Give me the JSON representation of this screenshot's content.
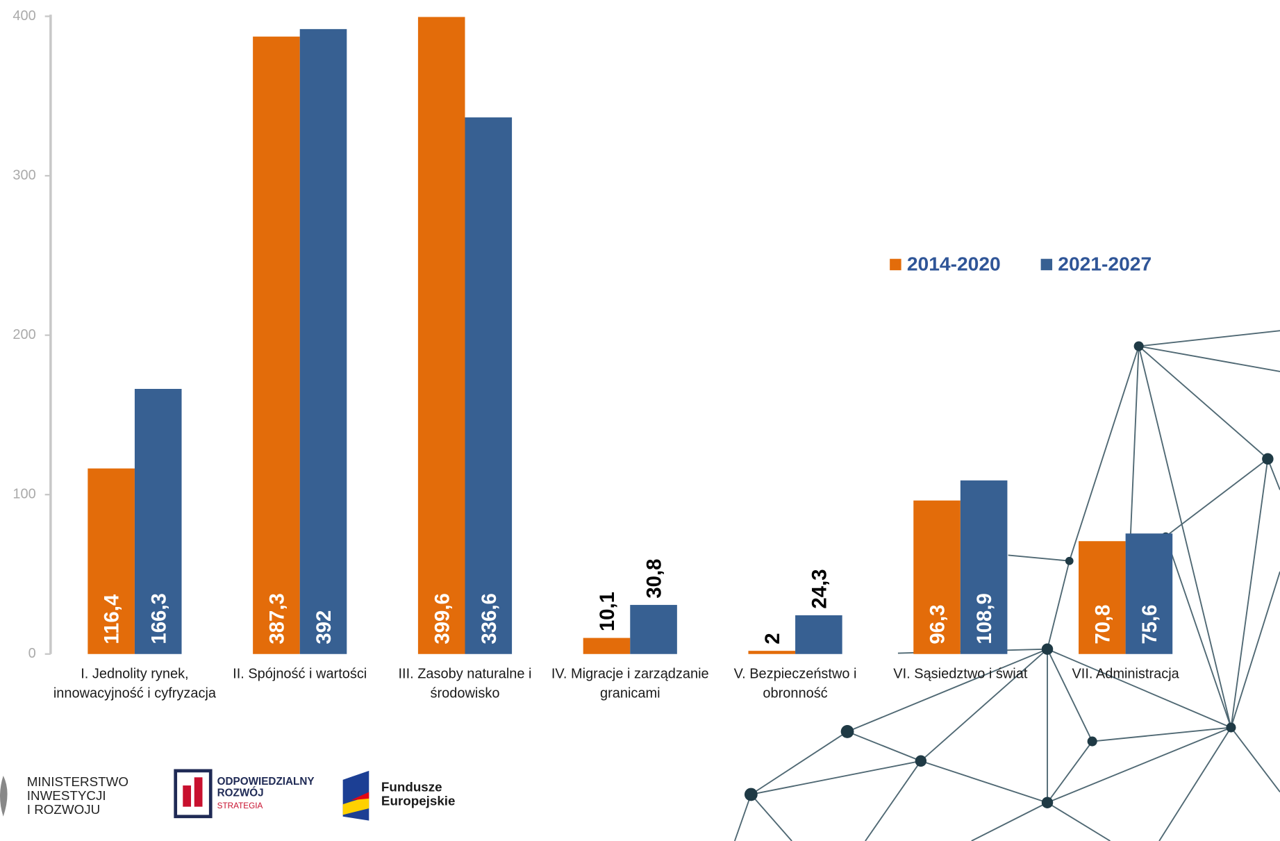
{
  "chart_data": {
    "type": "bar",
    "categories": [
      [
        "I. Jednolity rynek,",
        "innowacyjność i cyfryzacja"
      ],
      [
        "II. Spójność i wartości"
      ],
      [
        "III. Zasoby naturalne i",
        "środowisko"
      ],
      [
        "IV. Migracje i zarządzanie",
        "granicami"
      ],
      [
        "V.  Bezpieczeństwo i",
        "obronność"
      ],
      [
        "VI. Sąsiedztwo i  świat"
      ],
      [
        "VII. Administracja"
      ]
    ],
    "series": [
      {
        "name": "2014-2020",
        "color": "#e36c0a",
        "values": [
          116.4,
          387.3,
          399.6,
          10.1,
          2,
          96.3,
          70.8
        ],
        "value_labels": [
          "116,4",
          "387,3",
          "399,6",
          "10,1",
          "2",
          "96,3",
          "70,8"
        ]
      },
      {
        "name": "2021-2027",
        "color": "#376092",
        "values": [
          166.3,
          392,
          336.6,
          30.8,
          24.3,
          108.9,
          75.6
        ],
        "value_labels": [
          "166,3",
          "392",
          "336,6",
          "30,8",
          "24,3",
          "108,9",
          "75,6"
        ]
      }
    ],
    "ylim": [
      0,
      400
    ],
    "yticks": [
      0,
      100,
      200,
      300,
      400
    ],
    "legend": "upper right"
  },
  "logos": {
    "ministry": [
      "MINISTERSTWO",
      "INWESTYCJI",
      "I ROZWOJU"
    ],
    "strategy": [
      "ODPOWIEDZIALNY",
      "ROZWÓJ",
      "STRATEGIA"
    ],
    "funds": [
      "Fundusze",
      "Europejskie"
    ]
  }
}
